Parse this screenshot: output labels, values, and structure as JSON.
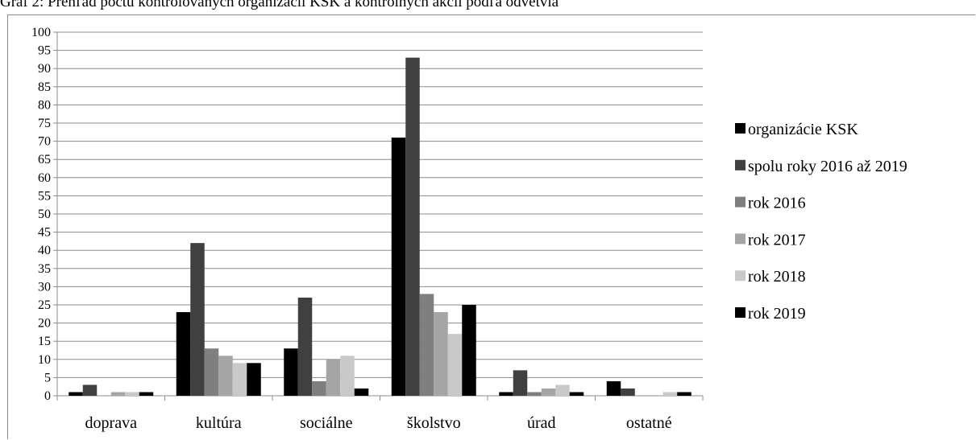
{
  "caption": "Graf 2: Prehľad počtu kontrolovaných organizácií KSK a kontrolných akcií podľa odvetvia",
  "chart_data": {
    "type": "bar",
    "title": "Graf 2: Prehľad počtu kontrolovaných organizácií KSK a kontrolných akcií podľa odvetvia",
    "xlabel": "",
    "ylabel": "",
    "ylim": [
      0,
      100
    ],
    "ytick_step": 5,
    "grid": true,
    "legend_position": "right",
    "categories": [
      "doprava",
      "kultúra",
      "sociálne",
      "školstvo",
      "úrad",
      "ostatné"
    ],
    "series": [
      {
        "name": "organizácie KSK",
        "color": "#000000",
        "values": [
          1,
          23,
          13,
          71,
          1,
          4
        ]
      },
      {
        "name": "spolu roky 2016 až 2019",
        "color": "#404040",
        "values": [
          3,
          42,
          27,
          93,
          7,
          2
        ]
      },
      {
        "name": "rok 2016",
        "color": "#7f7f7f",
        "values": [
          0,
          13,
          4,
          28,
          1,
          0
        ]
      },
      {
        "name": "rok 2017",
        "color": "#a5a5a5",
        "values": [
          1,
          11,
          10,
          23,
          2,
          0
        ]
      },
      {
        "name": "rok 2018",
        "color": "#c9c9c9",
        "values": [
          1,
          9,
          11,
          17,
          3,
          1
        ]
      },
      {
        "name": "rok 2019",
        "color": "#000000",
        "values": [
          1,
          9,
          2,
          25,
          1,
          1
        ]
      }
    ]
  }
}
